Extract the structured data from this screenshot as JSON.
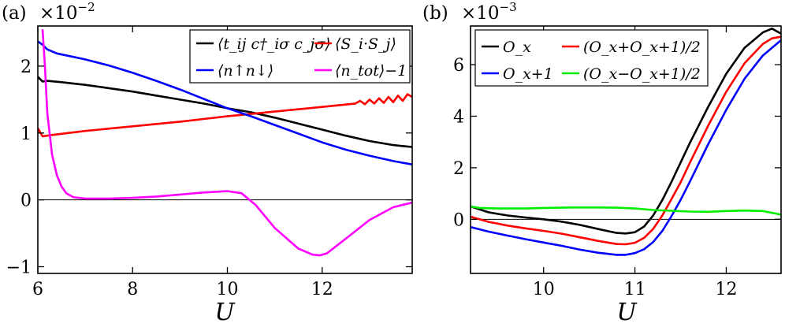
{
  "chart_data": [
    {
      "type": "line",
      "panel_label": "(a)",
      "scale_label": "×10",
      "scale_exponent": "−2",
      "xlabel": "U",
      "ylabel": "",
      "xlim": [
        6,
        13.9
      ],
      "ylim": [
        -1.1,
        2.6
      ],
      "x_ticks": [
        6,
        8,
        10,
        12
      ],
      "x_tick_labels": [
        "6",
        "8",
        "10",
        "12"
      ],
      "y_ticks": [
        -1,
        0,
        1,
        2
      ],
      "y_tick_labels": [
        "−1",
        "0",
        "1",
        "2"
      ],
      "zero_line": 0,
      "legend_position": "top-right",
      "series": [
        {
          "name": "⟨t_ij c†_iσ c_jσ⟩",
          "color": "#000000",
          "x": [
            6.0,
            6.1,
            6.2,
            6.5,
            7.0,
            7.5,
            8.0,
            8.5,
            9.0,
            9.5,
            10.0,
            10.5,
            11.0,
            11.5,
            12.0,
            12.5,
            13.0,
            13.5,
            13.9
          ],
          "y": [
            1.84,
            1.77,
            1.78,
            1.76,
            1.72,
            1.67,
            1.62,
            1.56,
            1.5,
            1.44,
            1.37,
            1.31,
            1.23,
            1.14,
            1.05,
            0.96,
            0.88,
            0.82,
            0.79
          ]
        },
        {
          "name": "⟨S_i·S_j⟩",
          "color": "#ff0000",
          "x": [
            6.0,
            6.1,
            6.3,
            7.0,
            8.0,
            9.0,
            10.0,
            11.0,
            12.0,
            12.7,
            12.8,
            12.9,
            13.0,
            13.1,
            13.2,
            13.3,
            13.4,
            13.5,
            13.6,
            13.7,
            13.8,
            13.9
          ],
          "y": [
            1.07,
            0.95,
            0.97,
            1.03,
            1.1,
            1.17,
            1.25,
            1.32,
            1.39,
            1.44,
            1.48,
            1.43,
            1.5,
            1.44,
            1.52,
            1.45,
            1.54,
            1.46,
            1.56,
            1.48,
            1.58,
            1.54
          ]
        },
        {
          "name": "⟨n↑n↓⟩",
          "color": "#0000ff",
          "x": [
            6.0,
            6.1,
            6.2,
            6.4,
            6.6,
            7.0,
            7.5,
            8.0,
            8.5,
            9.0,
            9.5,
            10.0,
            10.5,
            11.0,
            11.5,
            12.0,
            12.5,
            13.0,
            13.5,
            13.9
          ],
          "y": [
            2.37,
            2.32,
            2.25,
            2.19,
            2.16,
            2.1,
            2.01,
            1.9,
            1.78,
            1.65,
            1.51,
            1.37,
            1.25,
            1.12,
            0.99,
            0.86,
            0.75,
            0.66,
            0.58,
            0.53
          ]
        },
        {
          "name": "⟨n_tot⟩−1",
          "color": "#ff00ff",
          "x": [
            6.1,
            6.15,
            6.2,
            6.3,
            6.4,
            6.5,
            6.6,
            6.75,
            7.0,
            7.5,
            8.0,
            8.5,
            9.0,
            9.5,
            10.0,
            10.3,
            10.6,
            11.0,
            11.5,
            11.8,
            11.95,
            12.1,
            12.5,
            13.0,
            13.5,
            13.9
          ],
          "y": [
            2.55,
            2.0,
            1.3,
            0.68,
            0.37,
            0.2,
            0.1,
            0.04,
            0.02,
            0.02,
            0.03,
            0.05,
            0.08,
            0.11,
            0.13,
            0.1,
            -0.08,
            -0.42,
            -0.73,
            -0.82,
            -0.83,
            -0.8,
            -0.58,
            -0.3,
            -0.11,
            -0.04
          ]
        }
      ]
    },
    {
      "type": "line",
      "panel_label": "(b)",
      "scale_label": "×10",
      "scale_exponent": "−3",
      "xlabel": "U",
      "ylabel": "",
      "xlim": [
        9.2,
        12.6
      ],
      "ylim": [
        -2.1,
        7.5
      ],
      "x_ticks": [
        10,
        11,
        12
      ],
      "x_tick_labels": [
        "10",
        "11",
        "12"
      ],
      "y_ticks": [
        0,
        2,
        4,
        6
      ],
      "y_tick_labels": [
        "0",
        "2",
        "4",
        "6"
      ],
      "zero_line": 0,
      "legend_position": "top-left",
      "series": [
        {
          "name": "O_x",
          "color": "#000000",
          "x": [
            9.2,
            9.4,
            9.6,
            9.8,
            10.0,
            10.2,
            10.4,
            10.6,
            10.8,
            10.9,
            11.0,
            11.1,
            11.2,
            11.3,
            11.4,
            11.6,
            11.8,
            12.0,
            12.2,
            12.4,
            12.5,
            12.6
          ],
          "y": [
            0.5,
            0.27,
            0.15,
            0.07,
            0.0,
            -0.09,
            -0.22,
            -0.38,
            -0.53,
            -0.55,
            -0.5,
            -0.28,
            0.15,
            0.75,
            1.45,
            2.95,
            4.35,
            5.65,
            6.65,
            7.25,
            7.4,
            7.2
          ]
        },
        {
          "name": "O_x+1",
          "color": "#0000ff",
          "x": [
            9.2,
            9.4,
            9.6,
            9.8,
            10.0,
            10.2,
            10.4,
            10.6,
            10.8,
            10.9,
            11.0,
            11.1,
            11.2,
            11.3,
            11.4,
            11.5,
            11.6,
            11.8,
            12.0,
            12.2,
            12.4,
            12.5,
            12.6
          ],
          "y": [
            -0.3,
            -0.48,
            -0.63,
            -0.77,
            -0.9,
            -1.03,
            -1.18,
            -1.3,
            -1.38,
            -1.38,
            -1.31,
            -1.16,
            -0.88,
            -0.45,
            0.12,
            0.75,
            1.45,
            2.9,
            4.25,
            5.45,
            6.35,
            6.65,
            6.95
          ]
        },
        {
          "name": "(O_x+O_x+1)/2",
          "color": "#ff0000",
          "x": [
            9.2,
            9.4,
            9.6,
            9.8,
            10.0,
            10.2,
            10.4,
            10.6,
            10.8,
            10.9,
            11.0,
            11.1,
            11.2,
            11.3,
            11.4,
            11.5,
            11.6,
            11.8,
            12.0,
            12.2,
            12.4,
            12.5,
            12.6
          ],
          "y": [
            0.1,
            -0.1,
            -0.24,
            -0.35,
            -0.45,
            -0.56,
            -0.7,
            -0.84,
            -0.96,
            -0.97,
            -0.91,
            -0.72,
            -0.37,
            0.15,
            0.78,
            1.43,
            2.18,
            3.62,
            4.95,
            6.05,
            6.8,
            7.02,
            7.08
          ]
        },
        {
          "name": "(O_x−O_x+1)/2",
          "color": "#00ee00",
          "x": [
            9.2,
            9.3,
            9.5,
            9.8,
            10.0,
            10.3,
            10.6,
            10.8,
            11.0,
            11.2,
            11.4,
            11.6,
            11.8,
            12.0,
            12.2,
            12.4,
            12.6
          ],
          "y": [
            0.5,
            0.44,
            0.42,
            0.42,
            0.44,
            0.46,
            0.46,
            0.45,
            0.42,
            0.36,
            0.33,
            0.3,
            0.29,
            0.32,
            0.34,
            0.32,
            0.18
          ]
        }
      ]
    }
  ],
  "legend_a": [
    {
      "color": "#000000",
      "label": "⟨t_ij c†_iσ c_jσ⟩"
    },
    {
      "color": "#ff0000",
      "label": "⟨S_i·S_j⟩"
    },
    {
      "color": "#0000ff",
      "label": "⟨n↑n↓⟩"
    },
    {
      "color": "#ff00ff",
      "label": "⟨n_tot⟩−1"
    }
  ],
  "legend_b": [
    {
      "color": "#000000",
      "label": "O_x"
    },
    {
      "color": "#ff0000",
      "label": "(O_x+O_x+1)/2"
    },
    {
      "color": "#0000ff",
      "label": "O_x+1"
    },
    {
      "color": "#00ee00",
      "label": "(O_x−O_x+1)/2"
    }
  ]
}
